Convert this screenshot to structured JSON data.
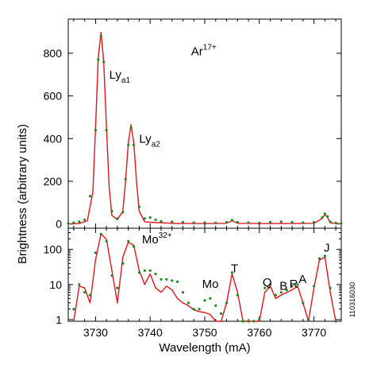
{
  "chart_data": [
    {
      "type": "line",
      "panel": "top",
      "title": "",
      "xlabel": "",
      "ylabel": "",
      "xlim": [
        3725,
        3775
      ],
      "ylim": [
        -20,
        960
      ],
      "yscale": "linear",
      "yticks": [
        0,
        200,
        400,
        600,
        800
      ],
      "ytick_labels": [
        "0",
        "200",
        "400",
        "600",
        "800"
      ],
      "grid": false,
      "annotations": [
        {
          "text": "Ar",
          "sup": "17+",
          "x": 3747.5,
          "y": 790
        },
        {
          "text": "Ly",
          "sub": "a1",
          "x": 3732.5,
          "y": 680
        },
        {
          "text": "Ly",
          "sub": "a2",
          "x": 3738.0,
          "y": 380
        }
      ],
      "series": [
        {
          "style": "solid-red",
          "color": "#e0141c",
          "x": [
            3725,
            3727,
            3728.5,
            3729.5,
            3730,
            3730.5,
            3731,
            3731.5,
            3732,
            3732.5,
            3733,
            3734,
            3735,
            3735.5,
            3736,
            3736.5,
            3737,
            3737.5,
            3738,
            3739,
            3740,
            3745,
            3750,
            3754,
            3755,
            3756,
            3760,
            3765,
            3770,
            3771.5,
            3772,
            3772.5,
            3773,
            3775
          ],
          "y": [
            0,
            2,
            15,
            150,
            450,
            780,
            898,
            760,
            450,
            170,
            40,
            20,
            60,
            200,
            380,
            465,
            380,
            200,
            60,
            10,
            8,
            2,
            2,
            3,
            15,
            3,
            2,
            2,
            3,
            25,
            45,
            30,
            5,
            0
          ]
        },
        {
          "style": "dots-green",
          "color": "#1e8a1e",
          "x": [
            3725,
            3726,
            3727,
            3728,
            3729,
            3730,
            3730.5,
            3731,
            3731.5,
            3732,
            3733,
            3734,
            3735,
            3735.5,
            3736,
            3736.5,
            3737,
            3738,
            3739,
            3740,
            3741,
            3742,
            3744,
            3746,
            3748,
            3750,
            3752,
            3754,
            3755,
            3756,
            3758,
            3760,
            3762,
            3764,
            3766,
            3768,
            3770,
            3771.5,
            3772,
            3772.5,
            3773,
            3774,
            3775
          ],
          "y": [
            3,
            6,
            10,
            20,
            130,
            440,
            770,
            880,
            760,
            440,
            60,
            25,
            55,
            210,
            370,
            450,
            370,
            80,
            25,
            30,
            20,
            12,
            10,
            8,
            6,
            6,
            5,
            8,
            18,
            8,
            6,
            5,
            8,
            10,
            8,
            6,
            8,
            30,
            48,
            35,
            10,
            5,
            3
          ]
        }
      ]
    },
    {
      "type": "line",
      "panel": "bottom",
      "title": "",
      "xlabel": "Wavelength (mA)",
      "ylabel": "Brightness (arbitrary units)",
      "xlim": [
        3725,
        3775
      ],
      "ylim": [
        0.9,
        400
      ],
      "yscale": "log",
      "yticks": [
        1,
        10,
        100
      ],
      "ytick_labels": [
        "1",
        "10",
        "100"
      ],
      "xticks": [
        3730,
        3740,
        3750,
        3760,
        3770
      ],
      "xtick_labels": [
        "3730",
        "3740",
        "3750",
        "3760",
        "3770"
      ],
      "grid": false,
      "annotations": [
        {
          "text": "Mo",
          "sup": "32+",
          "x": 3738.5,
          "y": 150
        },
        {
          "text": "Mo",
          "x": 3749.5,
          "y": 8
        },
        {
          "text": "T",
          "x": 3754.8,
          "y": 22
        },
        {
          "text": "Q",
          "x": 3760.6,
          "y": 9
        },
        {
          "text": "B",
          "x": 3763.7,
          "y": 7
        },
        {
          "text": "R",
          "x": 3765.5,
          "y": 8
        },
        {
          "text": "A",
          "x": 3767.2,
          "y": 11
        },
        {
          "text": "J",
          "x": 3771.8,
          "y": 85
        }
      ],
      "series": [
        {
          "style": "solid-red",
          "color": "#e0141c",
          "x": [
            3726,
            3727,
            3728,
            3729,
            3730,
            3731,
            3732,
            3733,
            3734,
            3735,
            3736,
            3737,
            3738,
            3739,
            3740,
            3741,
            3742,
            3743,
            3744,
            3745,
            3746,
            3747,
            3748,
            3749,
            3750,
            3751,
            3752,
            3753,
            3754,
            3755,
            3756,
            3757,
            3758,
            3759,
            3760,
            3761,
            3762,
            3763,
            3764,
            3765,
            3766,
            3767,
            3768,
            3769,
            3770,
            3771,
            3772,
            3773,
            3774
          ],
          "y": [
            0.9,
            9,
            8,
            3,
            50,
            280,
            190,
            25,
            3,
            60,
            160,
            130,
            25,
            10,
            20,
            8,
            6,
            9,
            7,
            4,
            3,
            2.5,
            1.9,
            1.7,
            1.6,
            1.4,
            0.9,
            0.9,
            3,
            20,
            6,
            0.9,
            0.9,
            0.9,
            0.9,
            6,
            9,
            4,
            5,
            6,
            7,
            9,
            3,
            0.9,
            8,
            50,
            60,
            6,
            0.9
          ]
        },
        {
          "style": "dots-green",
          "color": "#1e8a1e",
          "x": [
            3726,
            3727,
            3728,
            3729,
            3730,
            3731,
            3732,
            3733,
            3734,
            3735,
            3736,
            3737,
            3738,
            3739,
            3740,
            3741,
            3742,
            3743,
            3744,
            3745,
            3746,
            3747,
            3748,
            3749,
            3750,
            3751,
            3752,
            3753,
            3754,
            3755,
            3756,
            3757,
            3758,
            3759,
            3760,
            3761,
            3762,
            3763,
            3764,
            3765,
            3766,
            3767,
            3768,
            3769,
            3770,
            3771,
            3772,
            3773,
            3774
          ],
          "y": [
            2,
            10,
            6,
            5,
            80,
            270,
            170,
            18,
            8,
            40,
            170,
            120,
            22,
            25,
            25,
            20,
            14,
            14,
            13,
            12,
            6,
            3,
            2,
            2,
            3.5,
            4,
            2.5,
            1.5,
            3,
            22,
            5,
            0.9,
            0.9,
            0.9,
            1,
            8,
            10,
            5,
            6,
            7,
            9,
            10,
            3,
            1,
            9,
            55,
            65,
            8,
            0.9
          ]
        }
      ]
    }
  ],
  "side_id": "110316030"
}
